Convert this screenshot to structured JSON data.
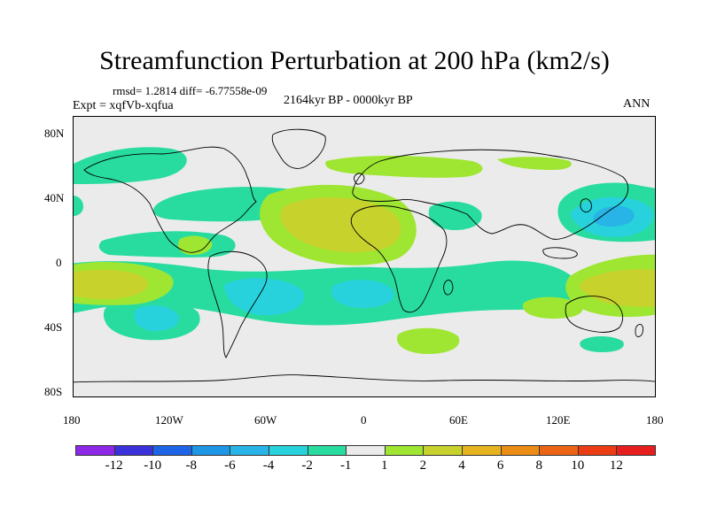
{
  "title": "Streamfunction Perturbation at 200 hPa (km2/s)",
  "stats_text": "rmsd= 1.2814 diff= -6.77558e-09",
  "expt_text": "Expt = xqfVb-xqfua",
  "period_text": "2164kyr BP - 0000kyr BP",
  "season_text": "ANN",
  "lat_labels": [
    "80N",
    "40N",
    "0",
    "40S",
    "80S"
  ],
  "lon_labels": [
    "180",
    "120W",
    "60W",
    "0",
    "60E",
    "120E",
    "180"
  ],
  "colorbar": {
    "labels": [
      "-12",
      "-10",
      "-8",
      "-6",
      "-4",
      "-2",
      "-1",
      "1",
      "2",
      "4",
      "6",
      "8",
      "10",
      "12"
    ],
    "colors": [
      "#8c28e6",
      "#3c32dc",
      "#1e64e6",
      "#1e96e6",
      "#28b4e6",
      "#28d2dc",
      "#28dca0",
      "#ebebeb",
      "#9ee632",
      "#c8d22d",
      "#e6b41e",
      "#eb8c14",
      "#eb6414",
      "#eb3c14",
      "#e61e1e"
    ]
  },
  "map_colors": {
    "neutral": "#ebebeb",
    "neg1": "#28dca0",
    "neg2": "#28d2dc",
    "neg3": "#28b4e6",
    "pos1": "#9ee632",
    "pos2": "#c8d22d"
  }
}
